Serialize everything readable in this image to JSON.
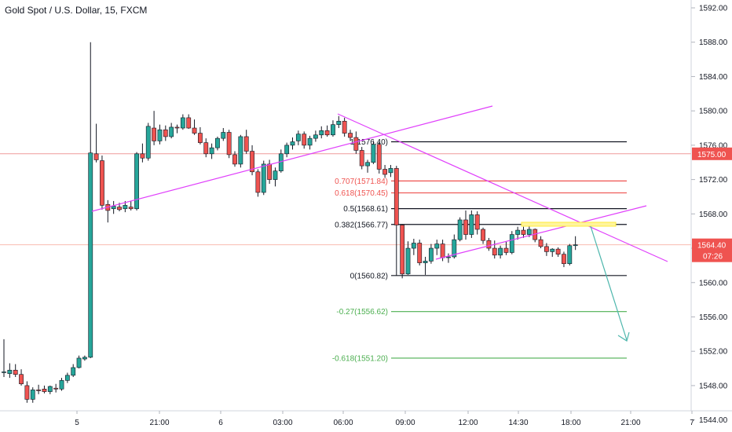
{
  "header": {
    "symbol_title": "Gold Spot / U.S. Dollar, 15, FXCM"
  },
  "colors": {
    "up": "#26a69a",
    "down": "#ef5350",
    "wick": "#131722",
    "fib_black": "#131722",
    "fib_red": "#ef5350",
    "fib_green": "#4caf50",
    "trendline": "#e040fb",
    "hline_red": "#ef9a9a",
    "projection": "#4db6ac",
    "highlight_box": "#ffeb3b",
    "price_badge_bg": "#ef5350",
    "price_badge_text": "#ffffff"
  },
  "axis": {
    "y_ticks": [
      "1592.00",
      "1588.00",
      "1584.00",
      "1580.00",
      "1576.00",
      "1572.00",
      "1568.00",
      "1564.00",
      "1560.00",
      "1556.00",
      "1552.00",
      "1548.00",
      "1544.00"
    ],
    "x_ticks": [
      "5",
      "21:00",
      "6",
      "03:00",
      "06:00",
      "09:00",
      "12:00",
      "14:30",
      "18:00",
      "21:00",
      "7"
    ],
    "price_badges": {
      "hline_price": "1575.00",
      "last_price": "1564.40",
      "countdown": "07:26"
    }
  },
  "fib_labels": [
    {
      "text": "1(1576.40)",
      "color": "black"
    },
    {
      "text": "0.707(1571.84)",
      "color": "red"
    },
    {
      "text": "0.618(1570.45)",
      "color": "red"
    },
    {
      "text": "0.5(1568.61)",
      "color": "black"
    },
    {
      "text": "0.382(1566.77)",
      "color": "black"
    },
    {
      "text": "0(1560.82)",
      "color": "black"
    },
    {
      "text": "-0.27(1556.62)",
      "color": "green"
    },
    {
      "text": "-0.618(1551.20)",
      "color": "green"
    }
  ],
  "chart_data": {
    "type": "candlestick",
    "title": "Gold Spot / U.S. Dollar, 15, FXCM",
    "ylim": [
      1542.5,
      1593.5
    ],
    "y_ticks": [
      1592,
      1588,
      1584,
      1580,
      1576,
      1572,
      1568,
      1564,
      1560,
      1556,
      1552,
      1548,
      1544
    ],
    "horizontal_line": 1575.0,
    "last_price": 1564.4,
    "fibonacci": [
      {
        "ratio": 1,
        "price": 1576.4
      },
      {
        "ratio": 0.707,
        "price": 1571.84
      },
      {
        "ratio": 0.618,
        "price": 1570.45
      },
      {
        "ratio": 0.5,
        "price": 1568.61
      },
      {
        "ratio": 0.382,
        "price": 1566.77
      },
      {
        "ratio": 0,
        "price": 1560.82
      },
      {
        "ratio": -0.27,
        "price": 1556.62
      },
      {
        "ratio": -0.618,
        "price": 1551.2
      }
    ],
    "candles": [
      [
        1549.6,
        1553.4,
        1549.0,
        1549.6
      ],
      [
        1549.4,
        1550.6,
        1548.9,
        1549.8
      ],
      [
        1549.8,
        1550.5,
        1549.0,
        1549.3
      ],
      [
        1549.3,
        1549.9,
        1548.0,
        1548.2
      ],
      [
        1548.0,
        1548.5,
        1546.0,
        1546.4
      ],
      [
        1546.4,
        1547.8,
        1546.0,
        1547.5
      ],
      [
        1547.5,
        1548.1,
        1547.0,
        1547.4
      ],
      [
        1547.6,
        1548.0,
        1547.1,
        1547.3
      ],
      [
        1547.3,
        1548.0,
        1547.0,
        1547.9
      ],
      [
        1547.7,
        1548.2,
        1547.2,
        1547.6
      ],
      [
        1547.6,
        1548.9,
        1547.4,
        1548.6
      ],
      [
        1548.6,
        1549.5,
        1548.3,
        1549.2
      ],
      [
        1549.2,
        1550.5,
        1549.0,
        1550.1
      ],
      [
        1550.1,
        1551.5,
        1550.0,
        1551.2
      ],
      [
        1551.1,
        1551.5,
        1550.9,
        1551.3
      ],
      [
        1551.3,
        1588.0,
        1551.2,
        1575.1
      ],
      [
        1575.0,
        1578.5,
        1574.0,
        1574.3
      ],
      [
        1574.2,
        1574.8,
        1568.5,
        1569.0
      ],
      [
        1569.1,
        1569.6,
        1567.0,
        1568.4
      ],
      [
        1568.6,
        1569.5,
        1568.0,
        1568.9
      ],
      [
        1568.8,
        1569.3,
        1568.3,
        1568.5
      ],
      [
        1568.6,
        1569.5,
        1568.2,
        1569.0
      ],
      [
        1568.8,
        1569.5,
        1568.4,
        1568.6
      ],
      [
        1568.6,
        1575.2,
        1568.4,
        1575.0
      ],
      [
        1575.0,
        1576.2,
        1574.0,
        1574.5
      ],
      [
        1574.5,
        1578.6,
        1574.2,
        1578.2
      ],
      [
        1578.0,
        1580.0,
        1576.0,
        1576.5
      ],
      [
        1576.5,
        1578.4,
        1576.1,
        1577.8
      ],
      [
        1577.8,
        1578.3,
        1576.5,
        1577.0
      ],
      [
        1577.0,
        1578.6,
        1576.8,
        1578.1
      ],
      [
        1578.1,
        1578.4,
        1577.4,
        1578.0
      ],
      [
        1578.0,
        1579.6,
        1577.8,
        1579.2
      ],
      [
        1579.2,
        1579.6,
        1577.9,
        1578.0
      ],
      [
        1578.0,
        1579.0,
        1577.2,
        1577.4
      ],
      [
        1577.4,
        1578.1,
        1576.1,
        1576.3
      ],
      [
        1576.3,
        1576.8,
        1574.6,
        1575.0
      ],
      [
        1575.0,
        1576.2,
        1574.4,
        1575.7
      ],
      [
        1575.7,
        1577.0,
        1575.4,
        1576.8
      ],
      [
        1576.8,
        1578.0,
        1576.5,
        1577.5
      ],
      [
        1577.5,
        1577.8,
        1574.5,
        1574.9
      ],
      [
        1574.9,
        1575.3,
        1573.5,
        1573.8
      ],
      [
        1573.8,
        1577.2,
        1573.4,
        1577.0
      ],
      [
        1577.0,
        1577.8,
        1575.0,
        1575.3
      ],
      [
        1575.3,
        1576.0,
        1572.5,
        1572.9
      ],
      [
        1572.9,
        1573.2,
        1570.0,
        1570.5
      ],
      [
        1570.5,
        1574.2,
        1570.2,
        1573.8
      ],
      [
        1573.8,
        1574.3,
        1571.5,
        1572.0
      ],
      [
        1572.0,
        1573.4,
        1571.2,
        1573.0
      ],
      [
        1573.0,
        1575.5,
        1572.8,
        1575.0
      ],
      [
        1575.0,
        1576.3,
        1574.6,
        1576.0
      ],
      [
        1576.0,
        1576.9,
        1575.5,
        1576.4
      ],
      [
        1576.5,
        1577.7,
        1576.0,
        1577.3
      ],
      [
        1577.3,
        1577.6,
        1575.6,
        1576.0
      ],
      [
        1576.0,
        1577.1,
        1575.5,
        1576.8
      ],
      [
        1576.8,
        1577.7,
        1576.4,
        1577.2
      ],
      [
        1577.2,
        1578.2,
        1576.8,
        1577.7
      ],
      [
        1577.7,
        1578.3,
        1577.0,
        1577.2
      ],
      [
        1577.2,
        1578.9,
        1577.0,
        1578.4
      ],
      [
        1578.4,
        1579.4,
        1578.0,
        1578.8
      ],
      [
        1578.8,
        1579.2,
        1577.0,
        1577.4
      ],
      [
        1577.4,
        1577.8,
        1576.5,
        1576.9
      ],
      [
        1576.9,
        1577.6,
        1575.0,
        1575.4
      ],
      [
        1575.4,
        1575.8,
        1573.2,
        1573.6
      ],
      [
        1573.6,
        1574.3,
        1572.8,
        1574.0
      ],
      [
        1574.0,
        1576.5,
        1573.8,
        1576.1
      ],
      [
        1576.1,
        1576.4,
        1572.7,
        1573.2
      ],
      [
        1573.2,
        1573.7,
        1572.2,
        1572.6
      ],
      [
        1572.8,
        1573.7,
        1572.3,
        1573.3
      ],
      [
        1573.3,
        1573.6,
        1560.8,
        1566.7
      ],
      [
        1566.7,
        1566.8,
        1560.5,
        1561.0
      ],
      [
        1561.0,
        1564.8,
        1560.9,
        1564.0
      ],
      [
        1564.0,
        1565.1,
        1563.2,
        1564.6
      ],
      [
        1564.6,
        1565.0,
        1562.0,
        1562.3
      ],
      [
        1562.3,
        1563.0,
        1560.9,
        1562.5
      ],
      [
        1562.5,
        1564.5,
        1562.2,
        1564.0
      ],
      [
        1564.0,
        1565.0,
        1563.2,
        1564.5
      ],
      [
        1564.5,
        1565.0,
        1562.5,
        1562.9
      ],
      [
        1562.9,
        1563.4,
        1562.3,
        1563.0
      ],
      [
        1563.0,
        1565.6,
        1562.8,
        1565.0
      ],
      [
        1565.0,
        1567.6,
        1564.8,
        1567.3
      ],
      [
        1567.3,
        1568.4,
        1565.0,
        1565.6
      ],
      [
        1565.6,
        1568.4,
        1565.2,
        1567.9
      ],
      [
        1567.9,
        1568.3,
        1565.6,
        1566.2
      ],
      [
        1566.2,
        1566.4,
        1564.5,
        1564.9
      ],
      [
        1564.9,
        1565.2,
        1563.7,
        1564.0
      ],
      [
        1564.0,
        1564.9,
        1562.8,
        1563.2
      ],
      [
        1563.2,
        1564.3,
        1562.8,
        1564.0
      ],
      [
        1564.0,
        1564.8,
        1563.2,
        1563.5
      ],
      [
        1563.5,
        1566.0,
        1563.3,
        1565.6
      ],
      [
        1565.6,
        1566.5,
        1565.0,
        1566.1
      ],
      [
        1566.1,
        1566.5,
        1565.2,
        1565.6
      ],
      [
        1565.6,
        1566.6,
        1565.3,
        1566.2
      ],
      [
        1566.2,
        1566.3,
        1564.7,
        1565.0
      ],
      [
        1565.0,
        1565.4,
        1564.0,
        1564.2
      ],
      [
        1564.2,
        1564.6,
        1563.1,
        1563.6
      ],
      [
        1563.6,
        1564.0,
        1563.0,
        1563.9
      ],
      [
        1563.9,
        1564.1,
        1563.0,
        1563.3
      ],
      [
        1563.3,
        1563.6,
        1561.8,
        1562.2
      ],
      [
        1562.2,
        1564.5,
        1562.0,
        1564.3
      ],
      [
        1564.3,
        1565.4,
        1563.8,
        1564.4
      ]
    ]
  }
}
